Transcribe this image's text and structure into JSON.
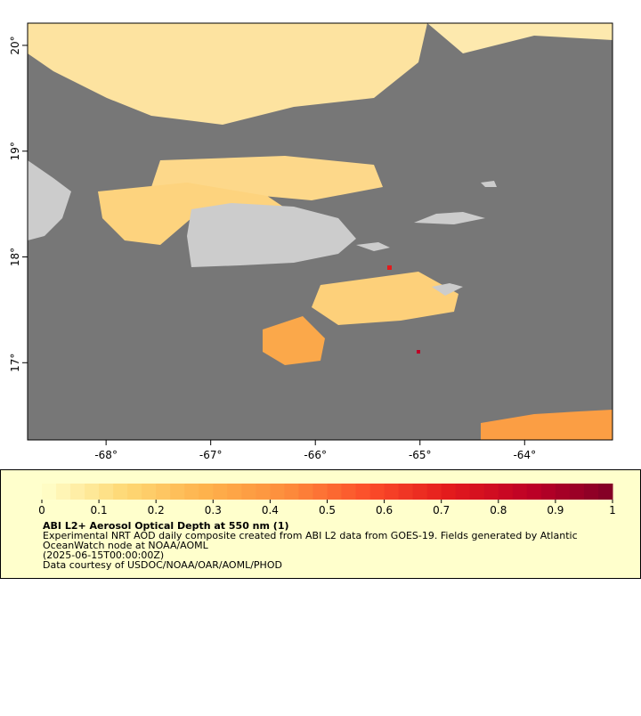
{
  "chart_data": {
    "type": "map",
    "xlim": [
      -68.75,
      -63.16
    ],
    "ylim": [
      16.27,
      20.21
    ],
    "xticks": [
      {
        "value": -68,
        "label": "-68°"
      },
      {
        "value": -67,
        "label": "-67°"
      },
      {
        "value": -66,
        "label": "-66°"
      },
      {
        "value": -65,
        "label": "-65°"
      },
      {
        "value": -64,
        "label": "-64°"
      }
    ],
    "yticks": [
      {
        "value": 17,
        "label": "17°"
      },
      {
        "value": 18,
        "label": "18°"
      },
      {
        "value": 19,
        "label": "19°"
      },
      {
        "value": 20,
        "label": "20°"
      }
    ],
    "colorbar": {
      "lim": [
        0,
        1
      ],
      "ticks": [
        0,
        0.1,
        0.2,
        0.3,
        0.4,
        0.5,
        0.6,
        0.7,
        0.8,
        0.9,
        1
      ],
      "colors": [
        "#ffffcc",
        "#fed976",
        "#feb24c",
        "#fd8d3c",
        "#fc4e2a",
        "#e31a1c",
        "#bd0026",
        "#800026"
      ]
    },
    "legend": {
      "title": "ABI L2+ Aerosol Optical Depth at 550 nm (1)",
      "lines": [
        "Experimental NRT AOD daily composite created from ABI L2 data from GOES-19. Fields generated by Atlantic",
        "OceanWatch node at NOAA/AOML",
        "(2025-06-15T00:00:00Z)",
        "Data courtesy of USDOC/NOAA/OAR/AOML/PHOD"
      ]
    }
  }
}
